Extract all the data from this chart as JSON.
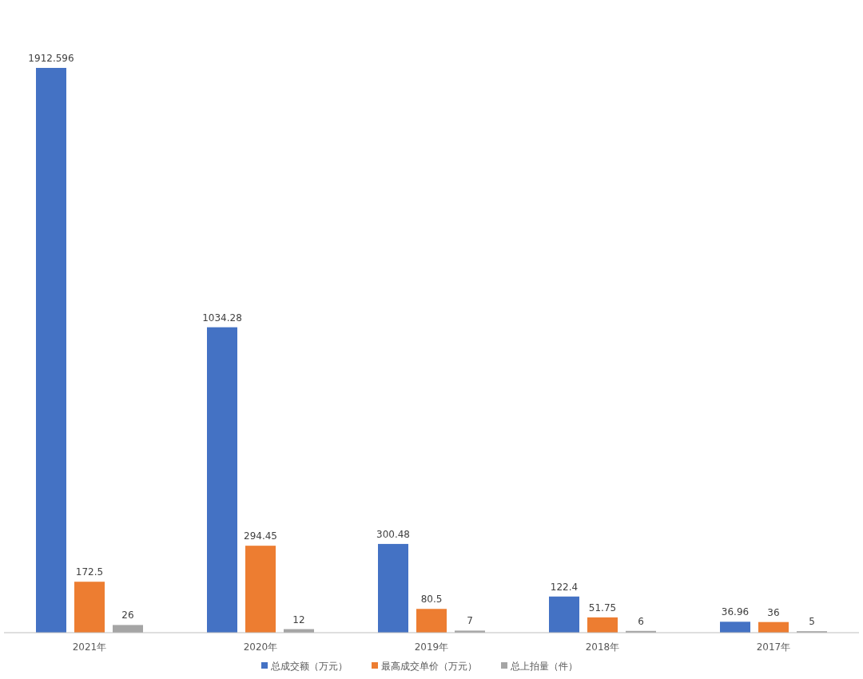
{
  "chart_data": {
    "type": "bar",
    "categories": [
      "2021年",
      "2020年",
      "2019年",
      "2018年",
      "2017年"
    ],
    "series": [
      {
        "name": "总成交额（万元）",
        "color": "#4472c4",
        "values": [
          1912.596,
          1034.28,
          300.48,
          122.4,
          36.96
        ]
      },
      {
        "name": "最高成交单价（万元）",
        "color": "#ed7d31",
        "values": [
          172.5,
          294.45,
          80.5,
          51.75,
          36
        ]
      },
      {
        "name": "总上拍量（件）",
        "color": "#a5a5a5",
        "values": [
          26,
          12,
          7,
          6,
          5
        ]
      }
    ],
    "data_labels": true,
    "legend": "bottom"
  }
}
